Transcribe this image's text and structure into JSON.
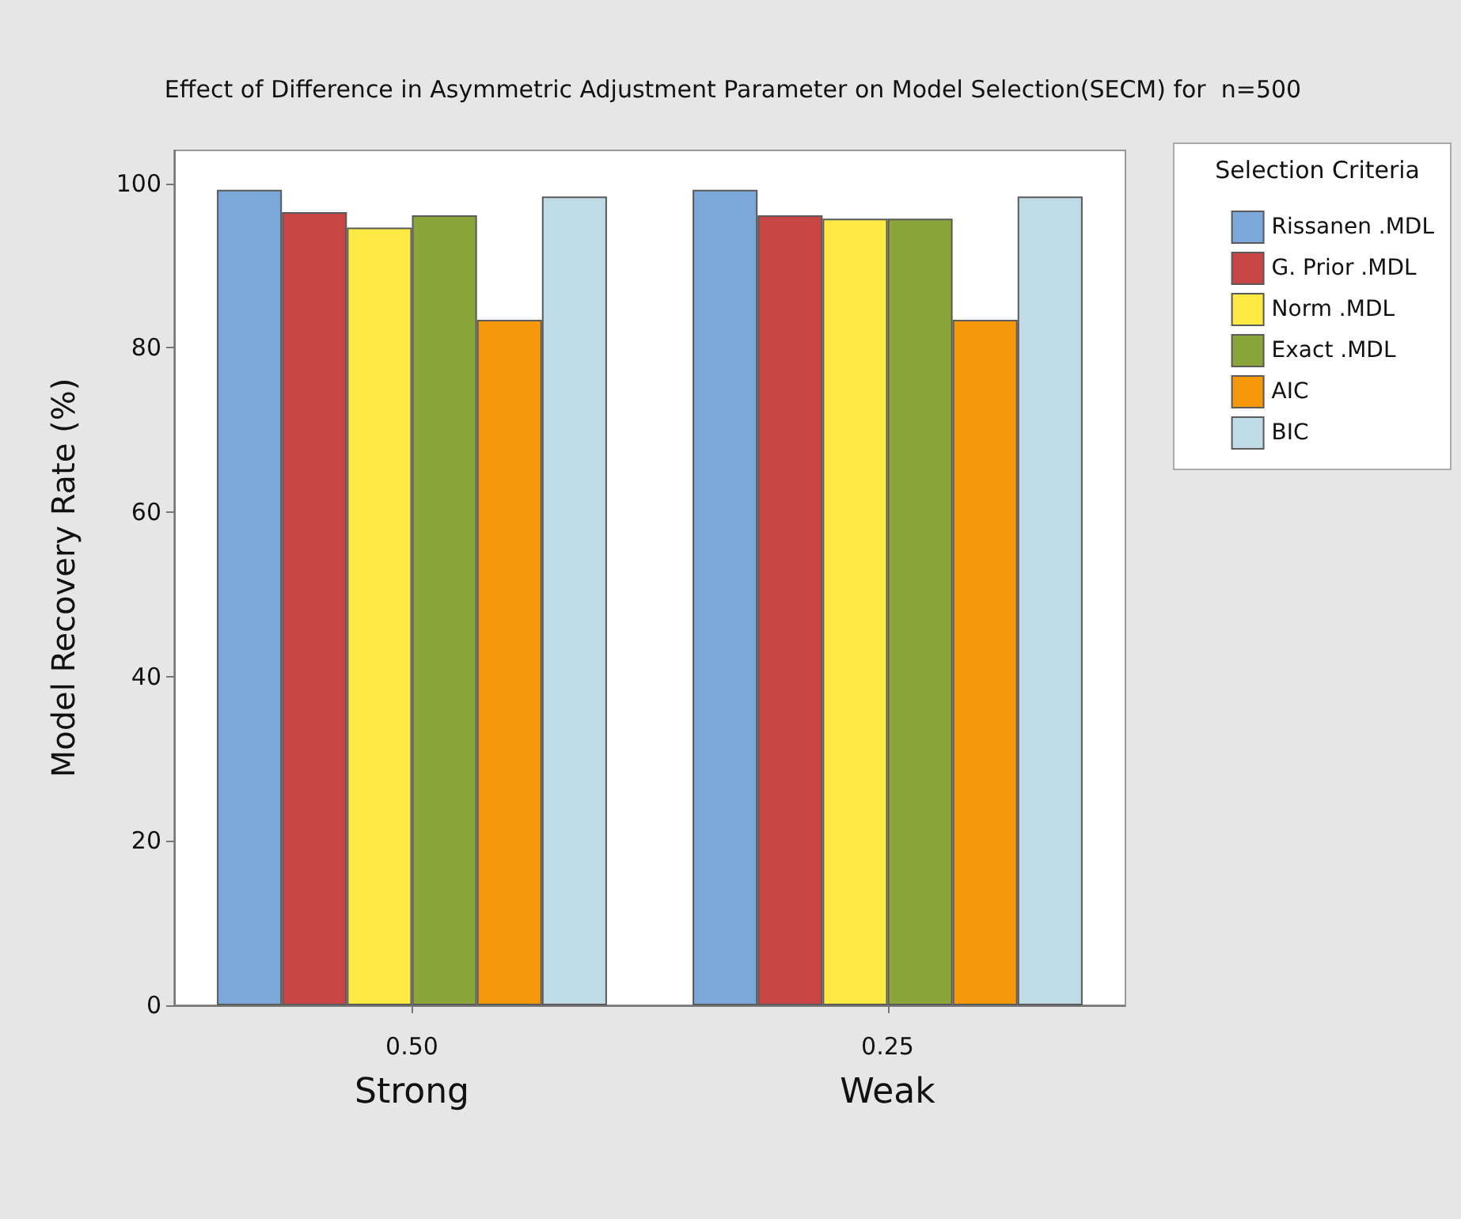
{
  "chart_data": {
    "type": "bar",
    "title": "Effect of Difference in Asymmetric Adjustment Parameter on Model Selection(SECM) for  n=500",
    "ylabel": "Model Recovery Rate (%)",
    "legend_title": "Selection Criteria",
    "categories": [
      "0.50",
      "0.25"
    ],
    "annotations": [
      "Strong",
      "Weak"
    ],
    "series": [
      {
        "name": "Rissanen .MDL",
        "color": "#7ba7d9",
        "values": [
          99.2,
          99.2
        ]
      },
      {
        "name": "G. Prior .MDL",
        "color": "#c84545",
        "values": [
          96.5,
          96.1
        ]
      },
      {
        "name": "Norm .MDL",
        "color": "#ffe945",
        "values": [
          94.6,
          95.7
        ]
      },
      {
        "name": "Exact .MDL",
        "color": "#8aa53a",
        "values": [
          96.1,
          95.7
        ]
      },
      {
        "name": "AIC",
        "color": "#f5980c",
        "values": [
          83.4,
          83.4
        ]
      },
      {
        "name": "BIC",
        "color": "#bfdbe6",
        "values": [
          98.4,
          98.4
        ]
      }
    ],
    "ylim": [
      0,
      104
    ],
    "yticks": [
      0,
      20,
      40,
      60,
      80,
      100
    ],
    "grid": false,
    "legend": "right"
  }
}
